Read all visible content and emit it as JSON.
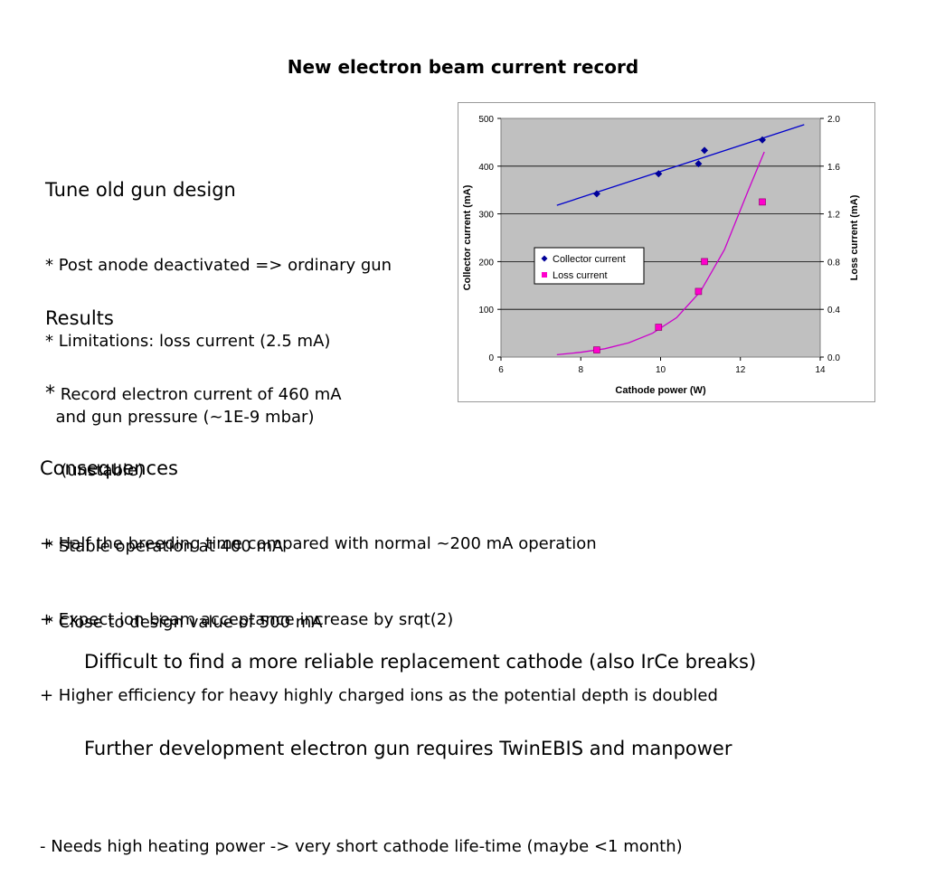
{
  "title": "New electron beam current record",
  "left": {
    "heading1": "Tune old gun design",
    "l1": "* Post anode deactivated => ordinary gun",
    "l2": "* Limitations: loss current (2.5 mA)",
    "l3": "  and gun pressure (~1E-9 mbar)",
    "heading2": "Results",
    "r1_star": "*",
    "r1": " Record electron current of 460 mA",
    "r2": "   (unstable)",
    "r3": "* Stable operation at 400 mA",
    "r4": "* Close to design value of 500 mA"
  },
  "consequences": {
    "heading": "Consequences",
    "c1": "+ Half the breeding time compared with normal ~200 mA operation",
    "c2": "+ Expect ion beam acceptance increase by srqt(2)",
    "c3": "+ Higher efficiency for heavy highly charged ions as the potential depth is doubled",
    "c4": "- Needs high heating power -> very short cathode life-time (maybe <1 month)"
  },
  "bottom": {
    "b1": "Difficult to find a more reliable replacement cathode (also IrCe breaks)",
    "b2": "Further development electron gun requires TwinEBIS and manpower"
  },
  "chart_data": {
    "type": "scatter",
    "xlabel": "Cathode power (W)",
    "ylabel": "Collector current (mA)",
    "y2label": "Loss current (mA)",
    "xlim": [
      6,
      14
    ],
    "ylim": [
      0,
      500
    ],
    "y2lim": [
      0,
      2.0
    ],
    "xticks": [
      "6",
      "8",
      "10",
      "12",
      "14"
    ],
    "yticks": [
      "0",
      "100",
      "200",
      "300",
      "400",
      "500"
    ],
    "y2ticks": [
      "0.0",
      "0.4",
      "0.8",
      "1.2",
      "1.6",
      "2.0"
    ],
    "grid": true,
    "legend_position": "center-left",
    "series": [
      {
        "name": "Collector current",
        "axis": "left",
        "marker": "diamond",
        "color": "#000099",
        "x": [
          8.4,
          9.95,
          10.95,
          11.1,
          12.55
        ],
        "y": [
          342,
          384,
          405,
          433,
          455
        ]
      },
      {
        "name": "Loss current",
        "axis": "right",
        "marker": "square",
        "color": "#ff00cc",
        "x": [
          8.4,
          9.95,
          10.95,
          11.1,
          12.55
        ],
        "y": [
          0.06,
          0.25,
          0.55,
          0.8,
          1.3
        ]
      }
    ],
    "fits": [
      {
        "type": "linear",
        "axis": "left",
        "color": "#0000cc",
        "x": [
          7.4,
          13.6
        ],
        "y": [
          318,
          487
        ]
      },
      {
        "type": "exponential",
        "axis": "right",
        "color": "#cc00cc",
        "x": [
          7.4,
          8,
          8.6,
          9.2,
          9.8,
          10.4,
          11,
          11.6,
          12.2,
          12.6
        ],
        "y": [
          0.02,
          0.04,
          0.07,
          0.12,
          0.2,
          0.33,
          0.55,
          0.9,
          1.4,
          1.72
        ]
      }
    ],
    "plot_background": "#c0c0c0"
  }
}
